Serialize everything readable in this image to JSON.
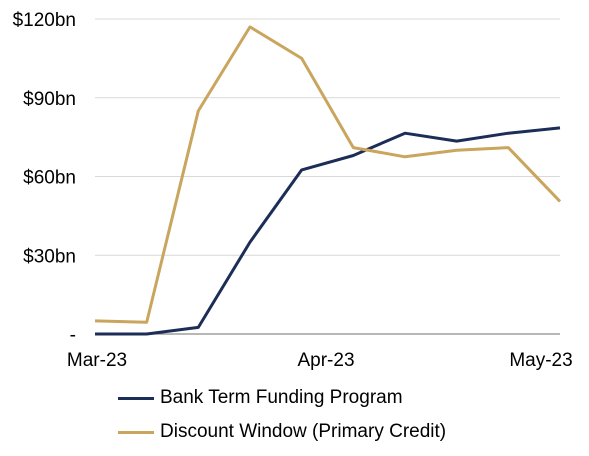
{
  "chart_data": {
    "type": "line",
    "title": "",
    "xlabel": "",
    "ylabel": "",
    "x_tick_labels": [
      "Mar-23",
      "Apr-23",
      "May-23"
    ],
    "y_tick_labels": [
      "-",
      "$30bn",
      "$60bn",
      "$90bn",
      "$120bn"
    ],
    "y_ticks": [
      0,
      30,
      60,
      90,
      120
    ],
    "ylim": [
      0,
      120
    ],
    "grid": "horizontal",
    "legend_position": "bottom",
    "x": [
      "2023-03-01",
      "2023-03-08",
      "2023-03-15",
      "2023-03-22",
      "2023-03-29",
      "2023-04-05",
      "2023-04-12",
      "2023-04-19",
      "2023-04-26",
      "2023-05-03"
    ],
    "series": [
      {
        "name": "Bank Term Funding Program",
        "color": "#1c2e57",
        "values": [
          0,
          0,
          2.5,
          35,
          62.5,
          68,
          76.5,
          73.5,
          76.5,
          78.5
        ]
      },
      {
        "name": "Discount Window (Primary Credit)",
        "color": "#c9a55e",
        "values": [
          5,
          4.5,
          85,
          117,
          105,
          71,
          67.5,
          70,
          71,
          50.5
        ]
      }
    ]
  }
}
